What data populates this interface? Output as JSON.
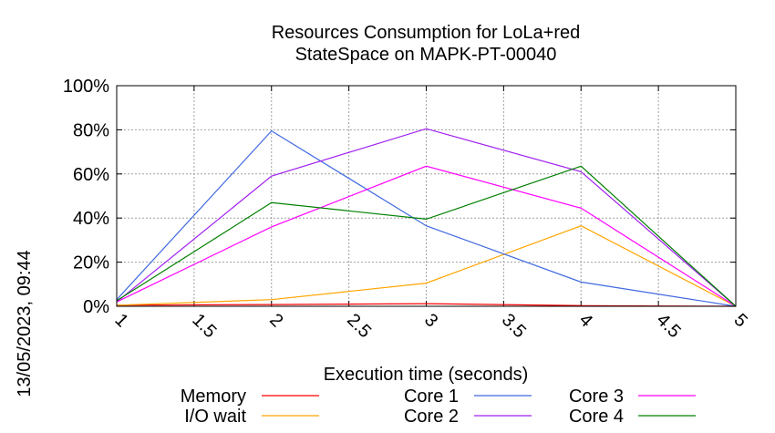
{
  "chart_data": {
    "type": "line",
    "title": "Resources Consumption for LoLa+red",
    "subtitle": "StateSpace on MAPK-PT-00040",
    "xlabel": "Execution time (seconds)",
    "ylabel": "",
    "xlim": [
      1,
      5
    ],
    "ylim": [
      0,
      100
    ],
    "x_ticks": [
      1,
      1.5,
      2,
      2.5,
      3,
      3.5,
      4,
      4.5,
      5
    ],
    "x_tick_labels": [
      "1",
      "1.5",
      "2",
      "2.5",
      "3",
      "3.5",
      "4",
      "4.5",
      "5"
    ],
    "y_ticks": [
      0,
      20,
      40,
      60,
      80,
      100
    ],
    "y_tick_labels": [
      "0%",
      "20%",
      "40%",
      "60%",
      "80%",
      "100%"
    ],
    "grid": true,
    "legend_position": "bottom",
    "x": [
      1,
      2,
      3,
      4,
      5
    ],
    "series": [
      {
        "name": "Memory",
        "color": "#ff0000",
        "values": [
          0.5,
          0.8,
          1.2,
          0.3,
          0
        ]
      },
      {
        "name": "I/O wait",
        "color": "#ffa500",
        "values": [
          0.5,
          3,
          10.5,
          36.5,
          0
        ]
      },
      {
        "name": "Core 1",
        "color": "#4169e1",
        "values": [
          3,
          79.5,
          36.5,
          11,
          0
        ]
      },
      {
        "name": "Core 2",
        "color": "#a020f0",
        "values": [
          2,
          59,
          80.5,
          61,
          0
        ]
      },
      {
        "name": "Core 3",
        "color": "#ff00ff",
        "values": [
          2,
          36,
          63.5,
          44.5,
          0
        ]
      },
      {
        "name": "Core 4",
        "color": "#008000",
        "values": [
          2.5,
          47,
          39.5,
          63.5,
          0
        ]
      }
    ]
  },
  "timestamp": "13/05/2023, 09:44"
}
